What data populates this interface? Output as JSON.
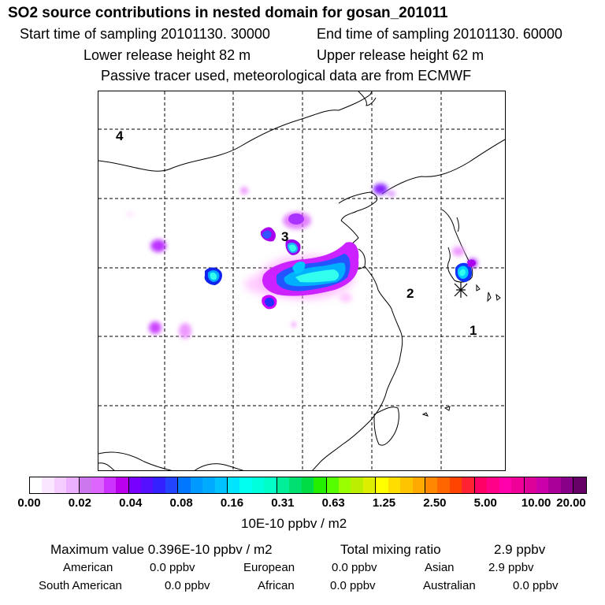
{
  "header": {
    "title": "SO2 source contributions in nested domain for gosan_201011",
    "start_time": "Start time of sampling 20101130. 30000",
    "end_time": "End time of sampling 20101130. 60000",
    "lower_height": "Lower release height   82 m",
    "upper_height": "Upper release height   62 m",
    "tracer_note": "Passive tracer used, meteorological data are from ECMWF"
  },
  "map": {
    "region_labels": [
      "4",
      "3",
      "2",
      "1"
    ],
    "receptor_marker": "gosan-star-marker"
  },
  "colorbar": {
    "ticks": [
      "0.00",
      "0.02",
      "0.04",
      "0.08",
      "0.16",
      "0.31",
      "0.63",
      "1.25",
      "2.50",
      "5.00",
      "10.00",
      "20.00"
    ],
    "colors": [
      "#ffffff",
      "#fbe6ff",
      "#f5ccff",
      "#ebb0ff",
      "#cc77ee",
      "#dd66ff",
      "#cc33ff",
      "#bb00ee",
      "#7700ff",
      "#5511ff",
      "#3322ff",
      "#2244ff",
      "#0077ff",
      "#0099ff",
      "#00aaff",
      "#00c2ff",
      "#00e5ff",
      "#00ffee",
      "#00ffdd",
      "#00ffc8",
      "#00f09a",
      "#00e070",
      "#00dd44",
      "#22ee00",
      "#55ff00",
      "#99ff00",
      "#bbee00",
      "#ddee00",
      "#ffff00",
      "#ffdd00",
      "#ffc400",
      "#ffaa00",
      "#ff8800",
      "#ff6600",
      "#ff4400",
      "#ff2233",
      "#ff0066",
      "#ff0088",
      "#ff00aa",
      "#ee0099",
      "#dd0099",
      "#cc00aa",
      "#aa0099",
      "#880088",
      "#660066"
    ],
    "unit_label": "10E-10 ppbv / m2"
  },
  "summary": {
    "maximum": "Maximum value  0.396E-10 ppbv / m2",
    "total_label": "Total mixing ratio",
    "total_value": "2.9 ppbv",
    "rows": [
      [
        {
          "label": "American",
          "value": "0.0 ppbv"
        },
        {
          "label": "European",
          "value": "0.0 ppbv"
        },
        {
          "label": "Asian",
          "value": "2.9 ppbv"
        }
      ],
      [
        {
          "label": "South American",
          "value": "0.0 ppbv"
        },
        {
          "label": "African",
          "value": "0.0 ppbv"
        },
        {
          "label": "Australian",
          "value": "0.0 ppbv"
        }
      ]
    ]
  }
}
